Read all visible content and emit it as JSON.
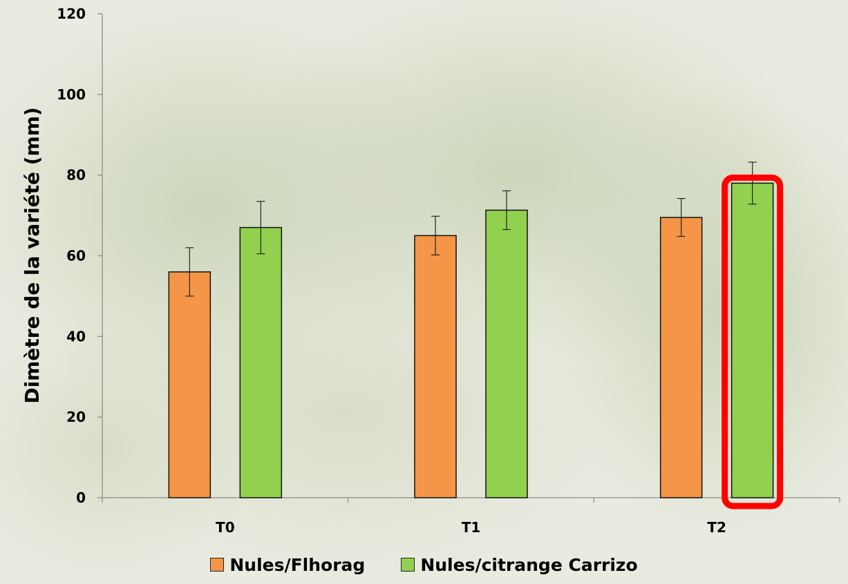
{
  "chart_data": {
    "type": "bar",
    "categories": [
      "T0",
      "T1",
      "T2"
    ],
    "series": [
      {
        "name": "Nules/Flhorag",
        "color": "#f59547",
        "values": [
          56,
          65,
          69.5
        ],
        "errors": [
          6,
          4.8,
          4.7
        ]
      },
      {
        "name": "Nules/citrange Carrizo",
        "color": "#92d050",
        "values": [
          67,
          71.3,
          78
        ],
        "errors": [
          6.5,
          4.8,
          5.2
        ]
      }
    ],
    "ylabel": "Dimètre de la variété (mm)",
    "xlabel": "",
    "ylim": [
      0,
      120
    ],
    "yticks": [
      "0",
      "20",
      "40",
      "60",
      "80",
      "100",
      "120"
    ],
    "grid": false,
    "legend_position": "bottom",
    "highlight": {
      "series": 1,
      "category": 2,
      "color": "#ff0000"
    }
  }
}
